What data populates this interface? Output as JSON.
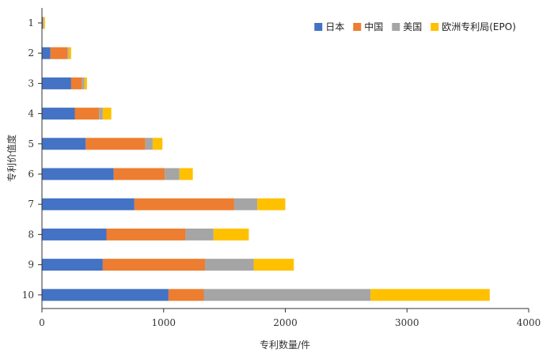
{
  "chart_data": {
    "type": "bar",
    "orientation": "horizontal",
    "stacked": true,
    "categories": [
      "1",
      "2",
      "3",
      "4",
      "5",
      "6",
      "7",
      "8",
      "9",
      "10"
    ],
    "series": [
      {
        "name": "日本",
        "color": "#4472c4",
        "values": [
          8,
          70,
          240,
          270,
          360,
          590,
          760,
          530,
          500,
          1040
        ]
      },
      {
        "name": "中国",
        "color": "#ed7d31",
        "values": [
          4,
          140,
          90,
          200,
          490,
          420,
          820,
          650,
          840,
          290
        ]
      },
      {
        "name": "美国",
        "color": "#a5a5a5",
        "values": [
          3,
          10,
          20,
          30,
          60,
          120,
          190,
          230,
          400,
          1370
        ]
      },
      {
        "name": "欧洲专利局(EPO)",
        "color": "#ffc000",
        "values": [
          10,
          20,
          20,
          70,
          80,
          110,
          230,
          290,
          330,
          980
        ]
      }
    ],
    "xlabel": "专利数量/件",
    "ylabel": "专利价值度",
    "xlim": [
      0,
      4000
    ],
    "xticks": [
      "0",
      "1000",
      "2000",
      "3000",
      "4000"
    ],
    "legend_position": "top-right",
    "grid": false
  }
}
